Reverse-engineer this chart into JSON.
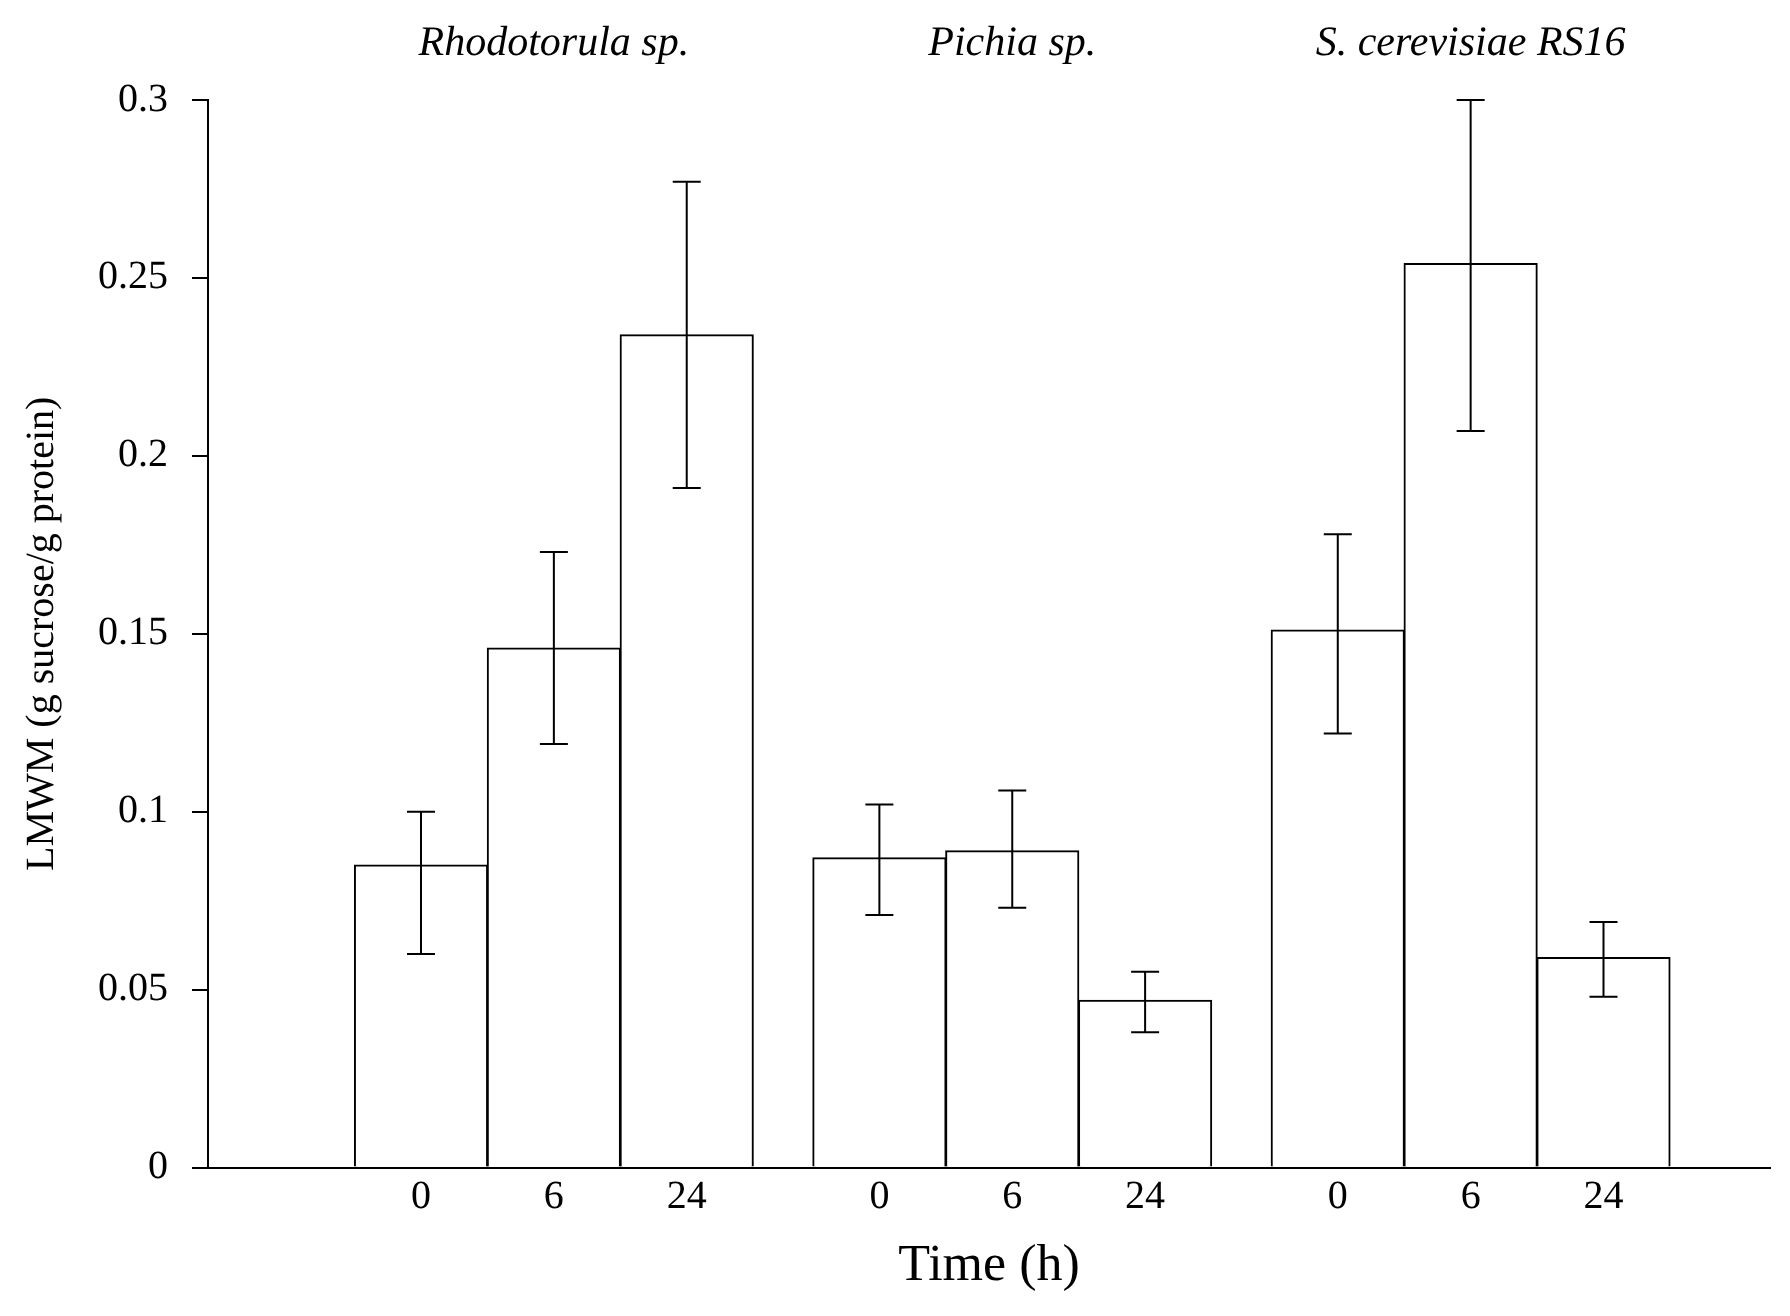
{
  "chart_data": {
    "type": "bar",
    "xlabel": "Time (h)",
    "ylabel": "LMWM (g sucrose/g protein)",
    "categories": [
      "0",
      "6",
      "24",
      "0",
      "6",
      "24",
      "0",
      "6",
      "24"
    ],
    "values": [
      0.085,
      0.146,
      0.234,
      0.087,
      0.089,
      0.047,
      0.151,
      0.254,
      0.059
    ],
    "errors": [
      [
        0.06,
        0.1
      ],
      [
        0.119,
        0.173
      ],
      [
        0.191,
        0.277
      ],
      [
        0.071,
        0.102
      ],
      [
        0.073,
        0.106
      ],
      [
        0.038,
        0.055
      ],
      [
        0.122,
        0.178
      ],
      [
        0.207,
        0.3
      ],
      [
        0.048,
        0.069
      ]
    ],
    "color": "#ffffff",
    "ylim": [
      0,
      0.3
    ],
    "yticks": [
      0,
      0.05,
      0.1,
      0.15,
      0.2,
      0.25,
      0.3
    ],
    "grid": false,
    "legend": false,
    "annotations": [
      "Rhodotorula sp.",
      "Pichia sp.",
      "S. cerevisiae RS16"
    ]
  }
}
